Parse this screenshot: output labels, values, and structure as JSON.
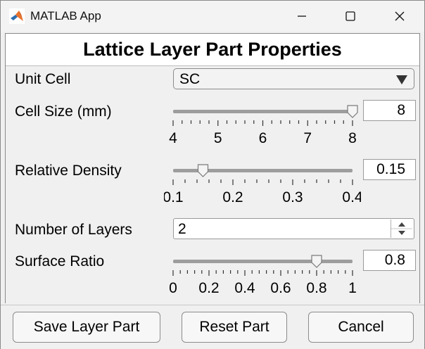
{
  "window": {
    "title": "MATLAB App"
  },
  "header": {
    "title": "Lattice Layer Part Properties"
  },
  "unit_cell": {
    "label": "Unit Cell",
    "value": "SC"
  },
  "cell_size": {
    "label": "Cell Size (mm)",
    "value": "8",
    "min": 4,
    "max": 8,
    "current": 8,
    "ticks": [
      "4",
      "5",
      "6",
      "7",
      "8"
    ]
  },
  "relative_density": {
    "label": "Relative Density",
    "value": "0.15",
    "min": 0.1,
    "max": 0.4,
    "current": 0.15,
    "ticks": [
      "0.1",
      "0.2",
      "0.3",
      "0.4"
    ]
  },
  "num_layers": {
    "label": "Number of Layers",
    "value": "2"
  },
  "surface_ratio": {
    "label": "Surface Ratio",
    "value": "0.8",
    "min": 0,
    "max": 1,
    "current": 0.8,
    "ticks": [
      "0",
      "0.2",
      "0.4",
      "0.6",
      "0.8",
      "1"
    ]
  },
  "buttons": {
    "save": "Save Layer Part",
    "reset": "Reset Part",
    "cancel": "Cancel"
  }
}
